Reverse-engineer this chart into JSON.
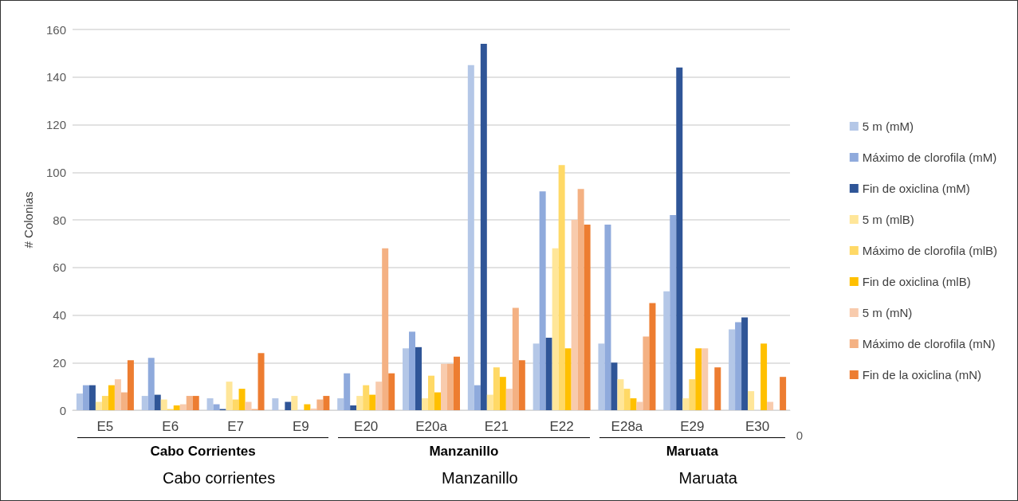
{
  "chart_data": {
    "type": "bar",
    "ylabel": "# Colonias",
    "categories": [
      "E5",
      "E6",
      "E7",
      "E9",
      "E20",
      "E20a",
      "E21",
      "E22",
      "E28a",
      "E29",
      "E30"
    ],
    "series": [
      {
        "name": "5 m (mM)",
        "color": "#b4c7e7",
        "values": [
          7,
          6,
          5,
          5,
          5,
          26,
          145,
          28,
          28,
          50,
          34
        ]
      },
      {
        "name": "Máximo de clorofila (mM)",
        "color": "#8faadc",
        "values": [
          10.5,
          22,
          2.5,
          0,
          15.5,
          33,
          10.5,
          92,
          78,
          82,
          37
        ]
      },
      {
        "name": "Fin de oxiclina (mM)",
        "color": "#2f5597",
        "values": [
          10.5,
          6.5,
          0.5,
          3.5,
          2,
          26.5,
          154,
          30.5,
          20,
          144,
          39
        ]
      },
      {
        "name": "5 m (mlB)",
        "color": "#ffe699",
        "values": [
          3.5,
          4.5,
          12,
          6,
          6,
          5,
          6.5,
          68,
          13,
          5,
          8
        ]
      },
      {
        "name": "Máximo de clorofila (mlB)",
        "color": "#ffd966",
        "values": [
          6,
          0.5,
          4.5,
          0,
          10.5,
          14.5,
          18,
          103,
          9,
          13,
          0
        ]
      },
      {
        "name": "Fin de oxiclina (mlB)",
        "color": "#ffc000",
        "values": [
          10.5,
          2,
          9,
          2.5,
          6.5,
          7.5,
          14,
          26,
          5,
          26,
          28
        ]
      },
      {
        "name": "5 m (mN)",
        "color": "#f8cbad",
        "values": [
          13,
          2.5,
          3.5,
          0.7,
          12,
          19.5,
          9,
          80,
          3.5,
          26,
          3.5
        ]
      },
      {
        "name": "Máximo de clorofila (mN)",
        "color": "#f4b183",
        "values": [
          7.5,
          6,
          0.5,
          4.5,
          68,
          19.5,
          43,
          93,
          31,
          0,
          0
        ]
      },
      {
        "name": "Fin de la oxiclina (mN)",
        "color": "#ed7d31",
        "values": [
          21,
          6,
          24,
          6,
          15.5,
          22.5,
          21,
          78,
          45,
          18,
          14
        ]
      }
    ],
    "ylim": [
      0,
      160
    ],
    "yticks": [
      0,
      20,
      40,
      60,
      80,
      100,
      120,
      140,
      160
    ],
    "grid": "y",
    "legend": "right",
    "annotations": [
      "Cabo Corrientes",
      "Manzanillo",
      "Maruata",
      "Cabo corrientes",
      "Manzanillo",
      "Maruata",
      "0"
    ]
  }
}
